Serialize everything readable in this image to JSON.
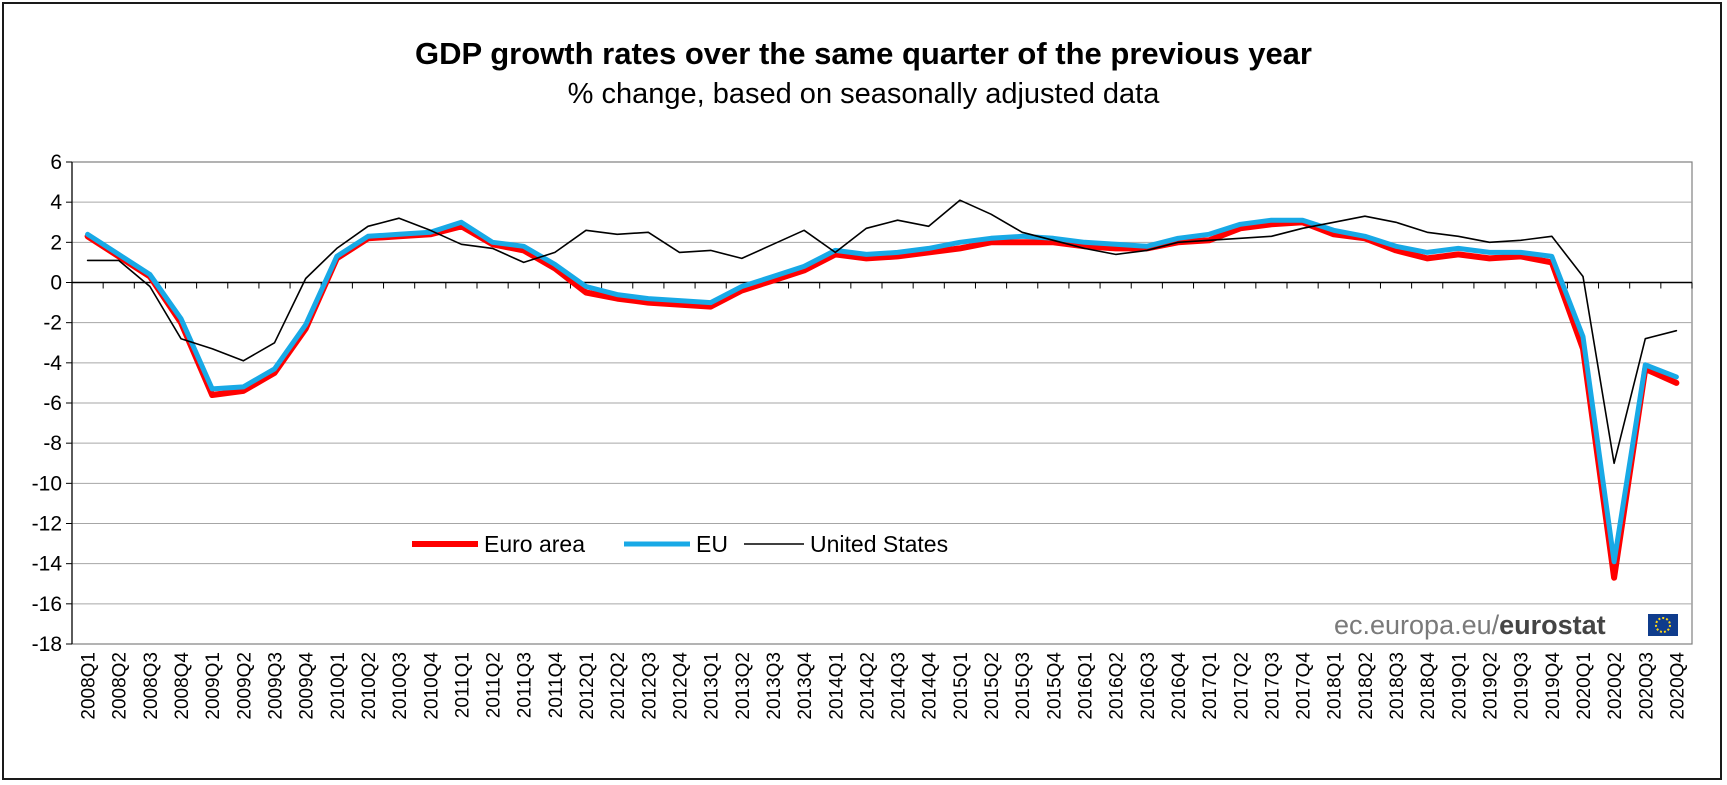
{
  "chart_data": {
    "type": "line",
    "title": "GDP growth rates over the same quarter of the previous year",
    "subtitle": "% change, based on seasonally adjusted data",
    "xlabel": "",
    "ylabel": "",
    "ylim": [
      -18,
      6
    ],
    "yticks": [
      6,
      4,
      2,
      0,
      -2,
      -4,
      -6,
      -8,
      -10,
      -12,
      -14,
      -16,
      -18
    ],
    "grid": true,
    "legend_position": "bottom-left",
    "categories": [
      "2008Q1",
      "2008Q2",
      "2008Q3",
      "2008Q4",
      "2009Q1",
      "2009Q2",
      "2009Q3",
      "2009Q4",
      "2010Q1",
      "2010Q2",
      "2010Q3",
      "2010Q4",
      "2011Q1",
      "2011Q2",
      "2011Q3",
      "2011Q4",
      "2012Q1",
      "2012Q2",
      "2012Q3",
      "2012Q4",
      "2013Q1",
      "2013Q2",
      "2013Q3",
      "2013Q4",
      "2014Q1",
      "2014Q2",
      "2014Q3",
      "2014Q4",
      "2015Q1",
      "2015Q2",
      "2015Q3",
      "2015Q4",
      "2016Q1",
      "2016Q2",
      "2016Q3",
      "2016Q4",
      "2017Q1",
      "2017Q2",
      "2017Q3",
      "2017Q4",
      "2018Q1",
      "2018Q2",
      "2018Q3",
      "2018Q4",
      "2019Q1",
      "2019Q2",
      "2019Q3",
      "2019Q4",
      "2020Q1",
      "2020Q2",
      "2020Q3",
      "2020Q4"
    ],
    "series": [
      {
        "name": "Euro area",
        "color": "#ff0000",
        "values": [
          2.3,
          1.3,
          0.3,
          -2.0,
          -5.6,
          -5.4,
          -4.5,
          -2.3,
          1.2,
          2.2,
          2.3,
          2.4,
          2.8,
          1.9,
          1.6,
          0.7,
          -0.5,
          -0.8,
          -1.0,
          -1.1,
          -1.2,
          -0.4,
          0.1,
          0.6,
          1.4,
          1.2,
          1.3,
          1.5,
          1.7,
          2.0,
          2.0,
          2.0,
          1.8,
          1.7,
          1.7,
          2.0,
          2.1,
          2.7,
          2.9,
          3.0,
          2.4,
          2.2,
          1.6,
          1.2,
          1.4,
          1.2,
          1.3,
          1.0,
          -3.3,
          -14.7,
          -4.3,
          -5.0
        ]
      },
      {
        "name": "EU",
        "color": "#18a9e6",
        "values": [
          2.4,
          1.4,
          0.4,
          -1.8,
          -5.3,
          -5.2,
          -4.3,
          -2.1,
          1.3,
          2.3,
          2.4,
          2.5,
          3.0,
          2.0,
          1.8,
          0.9,
          -0.2,
          -0.6,
          -0.8,
          -0.9,
          -1.0,
          -0.2,
          0.3,
          0.8,
          1.6,
          1.4,
          1.5,
          1.7,
          2.0,
          2.2,
          2.3,
          2.2,
          2.0,
          1.9,
          1.8,
          2.2,
          2.4,
          2.9,
          3.1,
          3.1,
          2.6,
          2.3,
          1.8,
          1.5,
          1.7,
          1.5,
          1.5,
          1.3,
          -2.7,
          -13.9,
          -4.1,
          -4.7
        ]
      },
      {
        "name": "United States",
        "color": "#000000",
        "values": [
          1.1,
          1.1,
          -0.2,
          -2.8,
          -3.3,
          -3.9,
          -3.0,
          0.2,
          1.7,
          2.8,
          3.2,
          2.6,
          1.9,
          1.7,
          1.0,
          1.5,
          2.6,
          2.4,
          2.5,
          1.5,
          1.6,
          1.2,
          1.9,
          2.6,
          1.5,
          2.7,
          3.1,
          2.8,
          4.1,
          3.4,
          2.5,
          2.1,
          1.7,
          1.4,
          1.6,
          2.0,
          2.1,
          2.2,
          2.3,
          2.7,
          3.0,
          3.3,
          3.0,
          2.5,
          2.3,
          2.0,
          2.1,
          2.3,
          0.3,
          -9.0,
          -2.8,
          -2.4
        ]
      }
    ]
  },
  "source": {
    "prefix": "ec.europa.eu/",
    "brand": "eurostat"
  }
}
